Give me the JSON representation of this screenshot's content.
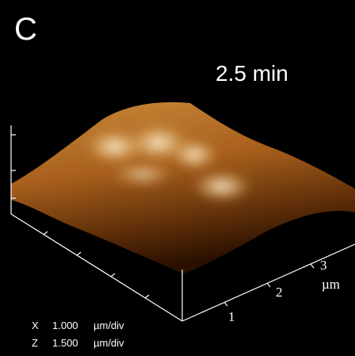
{
  "panel_label": "C",
  "time_label": "2.5 min",
  "axis": {
    "ticks": [
      "1",
      "2",
      "3"
    ],
    "unit": "µm"
  },
  "scale": [
    {
      "axis": "X",
      "value": "1.000",
      "unit": "µm/div"
    },
    {
      "axis": "Z",
      "value": "1.500",
      "unit": "µm/div"
    }
  ]
}
